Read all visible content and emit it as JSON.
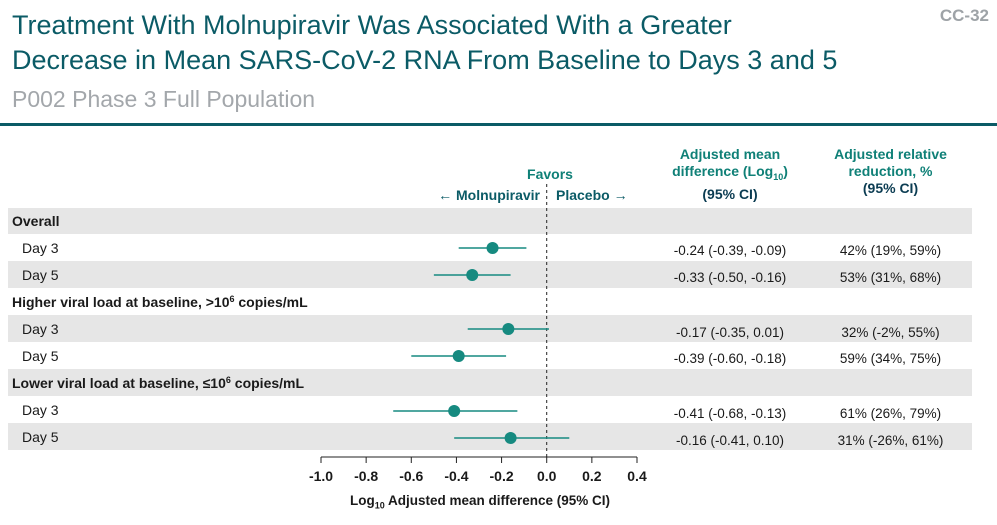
{
  "slide": {
    "title_line1": "Treatment With Molnupiravir Was Associated With a Greater",
    "title_line2": "Decrease in Mean SARS-CoV-2 RNA From Baseline to Days 3 and 5",
    "subtitle": "P002 Phase 3 Full Population",
    "slide_id": "CC-32"
  },
  "colors": {
    "title": "#0b5b66",
    "accent": "#0f8077",
    "marker": "#168a80",
    "band": "#e6e6e6"
  },
  "chart_data": {
    "type": "forest",
    "favors": {
      "heading": "Favors",
      "left": "← Molnupiravir",
      "right": "Placebo →"
    },
    "columns": {
      "mean_diff": {
        "line1": "Adjusted mean",
        "line2_pre": "difference (Log",
        "line2_sub": "10",
        "line2_post": ")",
        "line3": "(95% CI)"
      },
      "relative": {
        "line1": "Adjusted relative",
        "line2": "reduction, %",
        "line3": "(95% CI)"
      }
    },
    "xaxis": {
      "label_pre": "Log",
      "label_sub": "10",
      "label_post": " Adjusted mean difference (95% CI)",
      "min": -1.0,
      "max": 0.4,
      "ticks": [
        "-1.0",
        "-0.8",
        "-0.6",
        "-0.4",
        "-0.2",
        "0.0",
        "0.2",
        "0.4"
      ],
      "tick_values": [
        -1.0,
        -0.8,
        -0.6,
        -0.4,
        -0.2,
        0.0,
        0.2,
        0.4
      ],
      "reference_line": 0
    },
    "sections": [
      {
        "label_pre": "Overall",
        "label_sup": "",
        "label_post": "",
        "rows": [
          {
            "label": "Day 3",
            "mean": -0.24,
            "low": -0.39,
            "high": -0.09,
            "mean_ci": "-0.24 (-0.39, -0.09)",
            "relative": "42% (19%, 59%)"
          },
          {
            "label": "Day 5",
            "mean": -0.33,
            "low": -0.5,
            "high": -0.16,
            "mean_ci": "-0.33 (-0.50, -0.16)",
            "relative": "53% (31%, 68%)"
          }
        ]
      },
      {
        "label_pre": "Higher viral load at baseline, >10",
        "label_sup": "6",
        "label_post": " copies/mL",
        "rows": [
          {
            "label": "Day 3",
            "mean": -0.17,
            "low": -0.35,
            "high": 0.01,
            "mean_ci": "-0.17 (-0.35, 0.01)",
            "relative": "32% (-2%, 55%)"
          },
          {
            "label": "Day 5",
            "mean": -0.39,
            "low": -0.6,
            "high": -0.18,
            "mean_ci": "-0.39 (-0.60, -0.18)",
            "relative": "59% (34%, 75%)"
          }
        ]
      },
      {
        "label_pre": "Lower viral load at baseline, ≤10",
        "label_sup": "6",
        "label_post": " copies/mL",
        "rows": [
          {
            "label": "Day 3",
            "mean": -0.41,
            "low": -0.68,
            "high": -0.13,
            "mean_ci": "-0.41 (-0.68, -0.13)",
            "relative": "61% (26%, 79%)"
          },
          {
            "label": "Day 5",
            "mean": -0.16,
            "low": -0.41,
            "high": 0.1,
            "mean_ci": "-0.16 (-0.41, 0.10)",
            "relative": "31% (-26%, 61%)"
          }
        ]
      }
    ]
  }
}
